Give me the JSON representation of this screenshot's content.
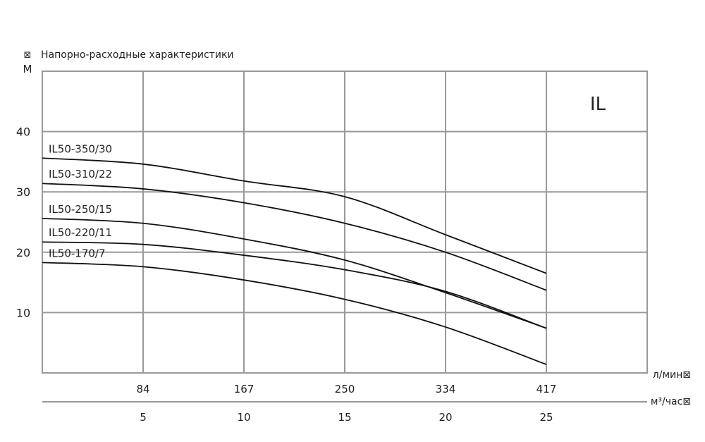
{
  "chart_data": {
    "type": "line",
    "title": "Напорно-расходные характеристики",
    "brand_label": "IL",
    "ylabel_glyph": "⊠",
    "ylabel": "М",
    "x_label_primary": "л/мин⊠",
    "x_label_secondary": "м³/час⊠",
    "ylim": [
      0,
      50
    ],
    "xlim": [
      0,
      30
    ],
    "grid": true,
    "yticks": [
      10,
      20,
      30,
      40
    ],
    "x_ticks_secondary": [
      5,
      10,
      15,
      20,
      25
    ],
    "x_ticks_primary": [
      84,
      167,
      250,
      334,
      417
    ],
    "x": [
      0,
      5,
      10,
      15,
      20,
      25
    ],
    "series": [
      {
        "name": "IL50-350/30",
        "values": [
          35.6,
          34.6,
          31.8,
          29.2,
          22.9,
          16.5
        ]
      },
      {
        "name": "IL50-310/22",
        "values": [
          31.4,
          30.5,
          28.2,
          24.8,
          20.0,
          13.7
        ]
      },
      {
        "name": "IL50-250/15",
        "values": [
          25.6,
          24.8,
          22.2,
          18.7,
          13.3,
          7.4
        ]
      },
      {
        "name": "IL50-220/11",
        "values": [
          21.7,
          21.3,
          19.5,
          17.1,
          13.5,
          7.4
        ]
      },
      {
        "name": "IL50-170/7",
        "values": [
          18.3,
          17.6,
          15.4,
          12.2,
          7.6,
          1.4
        ]
      }
    ]
  }
}
